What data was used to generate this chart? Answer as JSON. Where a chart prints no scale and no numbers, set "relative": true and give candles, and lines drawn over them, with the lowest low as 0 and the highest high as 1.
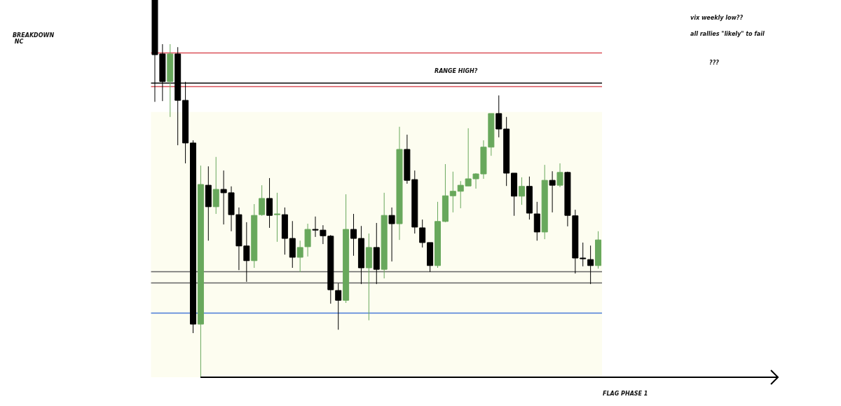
{
  "chart_data": {
    "type": "candlestick",
    "relative": true,
    "categories": [
      null,
      null,
      null,
      null,
      null,
      null,
      null,
      null,
      null,
      null,
      null,
      null,
      null,
      null,
      null,
      null,
      null,
      null,
      null,
      null,
      null,
      null,
      null,
      null,
      null,
      null,
      null,
      null,
      null,
      null,
      null,
      null,
      null,
      null,
      null,
      null,
      null,
      null,
      null,
      null,
      null,
      null,
      null,
      null,
      null,
      null,
      null,
      null,
      null,
      null,
      null,
      null,
      null,
      null,
      null,
      null,
      null,
      null,
      null
    ],
    "ohlc": [
      [
        1,
        1,
        0.73,
        0.855
      ],
      [
        0.857,
        0.883,
        0.732,
        0.784
      ],
      [
        0.784,
        0.883,
        0.69,
        0.857
      ],
      [
        0.857,
        0.875,
        0.615,
        0.734
      ],
      [
        0.734,
        0.783,
        0.567,
        0.621
      ],
      [
        0.621,
        0.628,
        0.117,
        0.141
      ],
      [
        0.141,
        0.561,
        0,
        0.511
      ],
      [
        0.509,
        0.559,
        0.362,
        0.452
      ],
      [
        0.452,
        0.584,
        0.433,
        0.498
      ],
      [
        0.498,
        0.548,
        0.405,
        0.489
      ],
      [
        0.489,
        0.506,
        0.387,
        0.431
      ],
      [
        0.431,
        0.45,
        0.284,
        0.348
      ],
      [
        0.348,
        0.411,
        0.253,
        0.309
      ],
      [
        0.309,
        0.459,
        0.29,
        0.429
      ],
      [
        0.431,
        0.509,
        0.428,
        0.474
      ],
      [
        0.474,
        0.528,
        0.396,
        0.429
      ],
      [
        0.431,
        0.489,
        0.359,
        0.433
      ],
      [
        0.431,
        0.45,
        0.325,
        0.368
      ],
      [
        0.368,
        0.414,
        0.29,
        0.318
      ],
      [
        0.318,
        0.362,
        0.279,
        0.344
      ],
      [
        0.346,
        0.407,
        0.32,
        0.392
      ],
      [
        0.392,
        0.426,
        0.372,
        0.39
      ],
      [
        0.39,
        0.403,
        0.353,
        0.375
      ],
      [
        0.374,
        0.377,
        0.195,
        0.232
      ],
      [
        0.23,
        0.249,
        0.126,
        0.204
      ],
      [
        0.204,
        0.485,
        0.197,
        0.392
      ],
      [
        0.392,
        0.433,
        0.322,
        0.368
      ],
      [
        0.368,
        0.401,
        0.247,
        0.29
      ],
      [
        0.29,
        0.381,
        0.151,
        0.344
      ],
      [
        0.344,
        0.409,
        0.247,
        0.286
      ],
      [
        0.286,
        0.489,
        0.262,
        0.429
      ],
      [
        0.429,
        0.45,
        0.307,
        0.407
      ],
      [
        0.407,
        0.664,
        0.364,
        0.604
      ],
      [
        0.604,
        0.643,
        0.513,
        0.522
      ],
      [
        0.524,
        0.548,
        0.381,
        0.398
      ],
      [
        0.396,
        0.418,
        0.344,
        0.357
      ],
      [
        0.357,
        0.357,
        0.279,
        0.296
      ],
      [
        0.296,
        0.465,
        0.29,
        0.413
      ],
      [
        0.413,
        0.565,
        0.411,
        0.481
      ],
      [
        0.481,
        0.545,
        0.437,
        0.493
      ],
      [
        0.493,
        0.52,
        0.448,
        0.509
      ],
      [
        0.507,
        0.66,
        0.507,
        0.526
      ],
      [
        0.526,
        0.541,
        0.5,
        0.539
      ],
      [
        0.539,
        0.628,
        0.526,
        0.61
      ],
      [
        0.61,
        0.699,
        0.587,
        0.699
      ],
      [
        0.699,
        0.747,
        0.636,
        0.658
      ],
      [
        0.658,
        0.69,
        0.507,
        0.541
      ],
      [
        0.541,
        0.541,
        0.428,
        0.48
      ],
      [
        0.48,
        0.53,
        0.457,
        0.506
      ],
      [
        0.506,
        0.532,
        0.418,
        0.435
      ],
      [
        0.433,
        0.465,
        0.362,
        0.385
      ],
      [
        0.385,
        0.563,
        0.366,
        0.522
      ],
      [
        0.522,
        0.546,
        0.437,
        0.509
      ],
      [
        0.509,
        0.567,
        0.504,
        0.543
      ],
      [
        0.543,
        0.545,
        0.4,
        0.429
      ],
      [
        0.428,
        0.444,
        0.275,
        0.316
      ],
      [
        0.316,
        0.357,
        0.294,
        0.314
      ],
      [
        0.312,
        0.349,
        0.247,
        0.296
      ],
      [
        0.296,
        0.387,
        0.288,
        0.364
      ]
    ],
    "colors": [
      "#000000",
      "#000000",
      "#68a85c",
      "#000000",
      "#000000",
      "#000000",
      "#68a85c",
      "#000000",
      "#68a85c",
      "#000000",
      "#000000",
      "#000000",
      "#000000",
      "#68a85c",
      "#68a85c",
      "#000000",
      "#68a85c",
      "#000000",
      "#000000",
      "#68a85c",
      "#68a85c",
      "#000000",
      "#000000",
      "#000000",
      "#000000",
      "#68a85c",
      "#000000",
      "#000000",
      "#68a85c",
      "#000000",
      "#68a85c",
      "#000000",
      "#68a85c",
      "#000000",
      "#000000",
      "#000000",
      "#000000",
      "#68a85c",
      "#68a85c",
      "#68a85c",
      "#68a85c",
      "#68a85c",
      "#68a85c",
      "#68a85c",
      "#68a85c",
      "#000000",
      "#000000",
      "#000000",
      "#68a85c",
      "#000000",
      "#000000",
      "#68a85c",
      "#000000",
      "#68a85c",
      "#000000",
      "#000000",
      "#000000",
      "#000000",
      "#68a85c"
    ],
    "ref_lines": [
      {
        "axis": "y",
        "value": 0.861,
        "color": "#d9525a"
      },
      {
        "axis": "y",
        "value": 0.783,
        "color": "#000000"
      },
      {
        "axis": "y",
        "value": 0.77,
        "color": "#d9525a"
      },
      {
        "axis": "y",
        "value": 0.281,
        "color": "#666666"
      },
      {
        "axis": "y",
        "value": 0.247,
        "color": "#666666"
      },
      {
        "axis": "y",
        "value": 0.167,
        "color": "#4a7bd8"
      }
    ],
    "bands": [
      {
        "axis": "y",
        "from": 0,
        "to": 0.703,
        "color": "#fdfdf0"
      }
    ],
    "annotations": [
      "BREAKDOWN NC",
      "vix weekly low??",
      "all rallies \"likely\" to fail",
      "RANGE HIGH?",
      "???",
      "FLAG PHASE 1"
    ]
  }
}
